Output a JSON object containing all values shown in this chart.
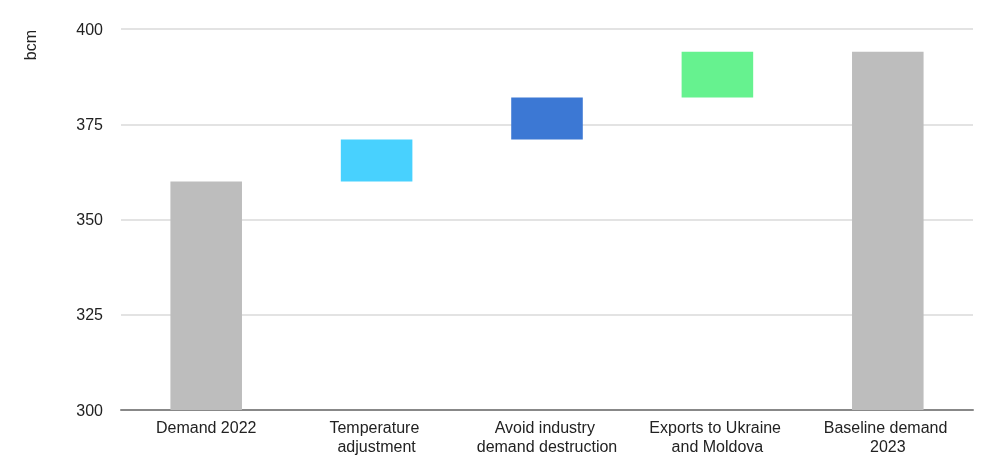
{
  "chart_data": {
    "type": "bar",
    "ylabel": "bcm",
    "categories": [
      "Demand 2022",
      "Temperature adjustment",
      "Avoid industry demand destruction",
      "Exports to Ukraine and Moldova",
      "Baseline demand 2023"
    ],
    "values": [
      360,
      11,
      11,
      12,
      394
    ],
    "base": [
      null,
      360,
      371,
      382,
      null
    ],
    "colors": [
      "#bdbdbd",
      "#48d1fe",
      "#3c78d4",
      "#66f28f",
      "#bdbdbd"
    ],
    "ylim": [
      300,
      400
    ],
    "yticks": [
      300,
      325,
      350,
      375,
      400
    ],
    "grid": "y"
  }
}
